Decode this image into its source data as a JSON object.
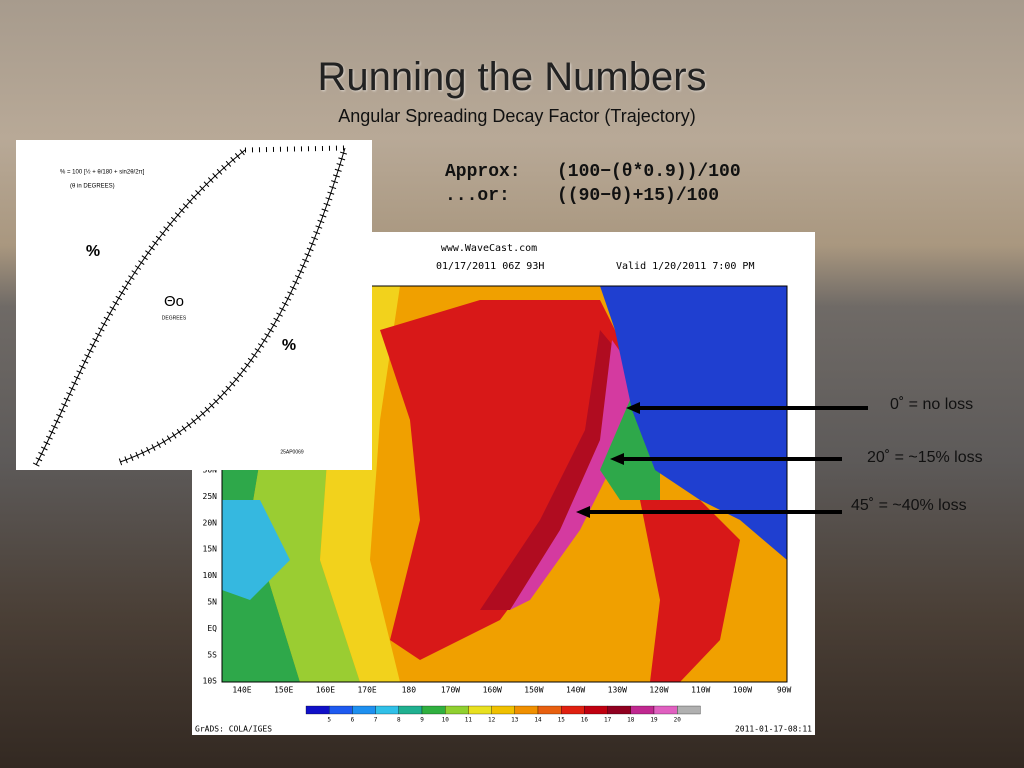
{
  "header": {
    "title": "Running the Numbers",
    "subtitle": "Angular Spreading Decay Factor  (Trajectory)"
  },
  "formulas": [
    {
      "label": "Approx:",
      "expr": "(100−(θ*0.9))/100"
    },
    {
      "label": "...or:",
      "expr": "((90−θ)+15)/100"
    }
  ],
  "annotations": [
    "0˚ = no loss",
    "20˚ = ~15% loss",
    "45˚ = ~40% loss"
  ],
  "nomogram": {
    "formula": "% = 100 [½ + θ/180 + sin2θ/2π]",
    "note": "(θ in DEGREES)",
    "percent_left": "%",
    "percent_right": "%",
    "theta": "Θo",
    "degrees": "DEGREES",
    "code": "25AP0069"
  },
  "map": {
    "source": "www.WaveCast.com",
    "run": "01/17/2011 06Z 93H",
    "valid": "Valid 1/20/2011 7:00 PM",
    "y_labels": [
      "30N",
      "25N",
      "20N",
      "15N",
      "10N",
      "5N",
      "EQ",
      "5S",
      "10S"
    ],
    "x_labels": [
      "140E",
      "150E",
      "160E",
      "170E",
      "180",
      "170W",
      "160W",
      "150W",
      "140W",
      "130W",
      "120W",
      "110W",
      "100W",
      "90W"
    ],
    "colorbar_labels": [
      "5",
      "6",
      "7",
      "8",
      "9",
      "10",
      "11",
      "12",
      "13",
      "14",
      "15",
      "16",
      "17",
      "18",
      "19",
      "20"
    ],
    "credit": "GrADS: COLA/IGES",
    "timestamp": "2011-01-17-08:11"
  }
}
